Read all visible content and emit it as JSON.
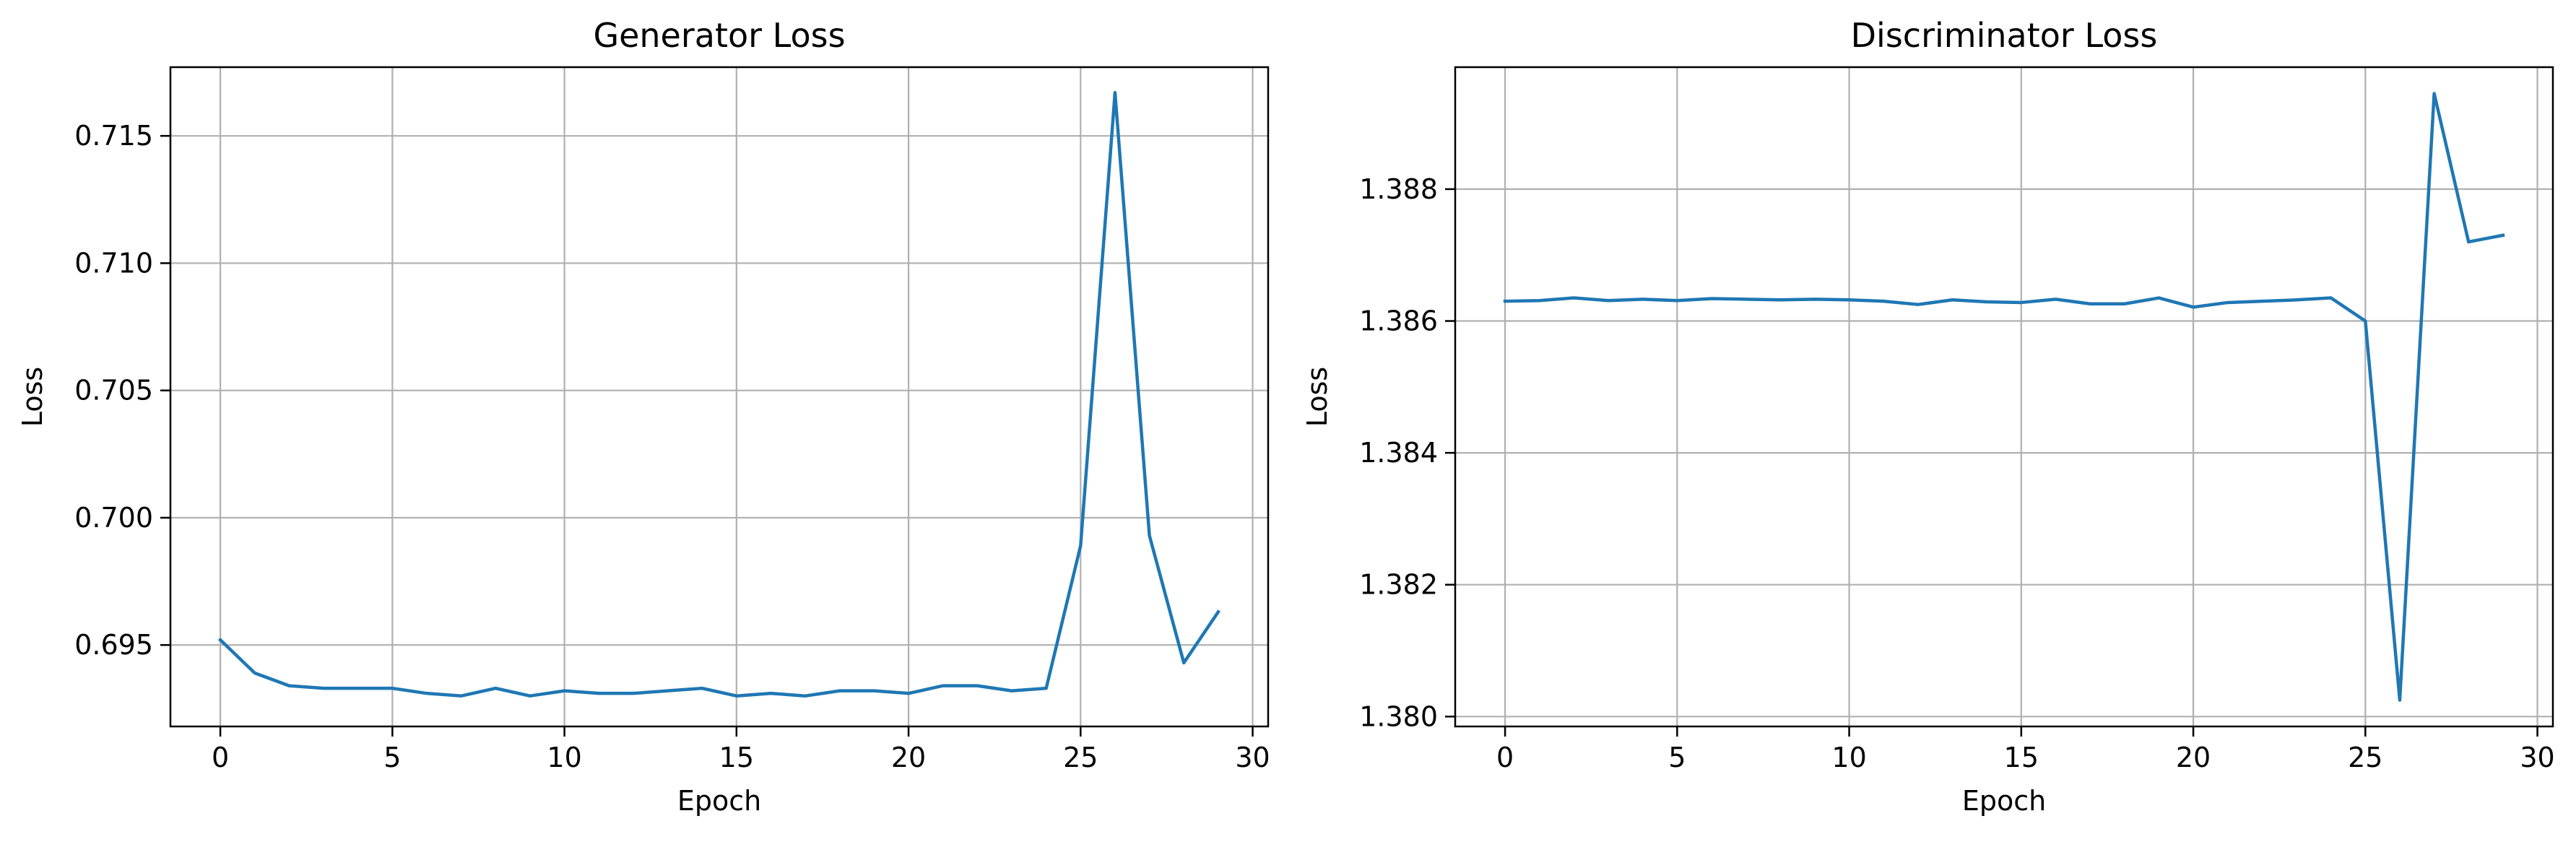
{
  "chart_data": [
    {
      "type": "line",
      "title": "Generator Loss",
      "xlabel": "Epoch",
      "ylabel": "Loss",
      "xlim": [
        -1.45,
        30.45
      ],
      "ylim": [
        0.6918,
        0.7177
      ],
      "xticks": [
        0,
        5,
        10,
        15,
        20,
        25,
        30
      ],
      "yticks": [
        0.695,
        0.7,
        0.705,
        0.71,
        0.715
      ],
      "ytick_labels": [
        "0.695",
        "0.700",
        "0.705",
        "0.710",
        "0.715"
      ],
      "grid": true,
      "line_color": "#1f77b4",
      "x": [
        0,
        1,
        2,
        3,
        4,
        5,
        6,
        7,
        8,
        9,
        10,
        11,
        12,
        13,
        14,
        15,
        16,
        17,
        18,
        19,
        20,
        21,
        22,
        23,
        24,
        25,
        26,
        27,
        28,
        29
      ],
      "series": [
        {
          "values": [
            0.6952,
            0.6939,
            0.6934,
            0.6933,
            0.6933,
            0.6933,
            0.6931,
            0.693,
            0.6933,
            0.693,
            0.6932,
            0.6931,
            0.6931,
            0.6932,
            0.6933,
            0.693,
            0.6931,
            0.693,
            0.6932,
            0.6932,
            0.6931,
            0.6934,
            0.6934,
            0.6932,
            0.6933,
            0.6989,
            0.7167,
            0.6993,
            0.6943,
            0.6963
          ]
        }
      ]
    },
    {
      "type": "line",
      "title": "Discriminator Loss",
      "xlabel": "Epoch",
      "ylabel": "Loss",
      "xlim": [
        -1.45,
        30.45
      ],
      "ylim": [
        1.37985,
        1.38985
      ],
      "xticks": [
        0,
        5,
        10,
        15,
        20,
        25,
        30
      ],
      "yticks": [
        1.38,
        1.382,
        1.384,
        1.386,
        1.388
      ],
      "ytick_labels": [
        "1.380",
        "1.382",
        "1.384",
        "1.386",
        "1.388"
      ],
      "grid": true,
      "line_color": "#1f77b4",
      "x": [
        0,
        1,
        2,
        3,
        4,
        5,
        6,
        7,
        8,
        9,
        10,
        11,
        12,
        13,
        14,
        15,
        16,
        17,
        18,
        19,
        20,
        21,
        22,
        23,
        24,
        25,
        26,
        27,
        28,
        29
      ],
      "series": [
        {
          "values": [
            1.3863,
            1.38631,
            1.38635,
            1.38631,
            1.38633,
            1.38631,
            1.38634,
            1.38633,
            1.38632,
            1.38633,
            1.38632,
            1.3863,
            1.38625,
            1.38632,
            1.38629,
            1.38628,
            1.38633,
            1.38626,
            1.38626,
            1.38635,
            1.38621,
            1.38628,
            1.3863,
            1.38632,
            1.38635,
            1.386,
            1.38025,
            1.38945,
            1.3872,
            1.3873
          ]
        }
      ]
    }
  ]
}
